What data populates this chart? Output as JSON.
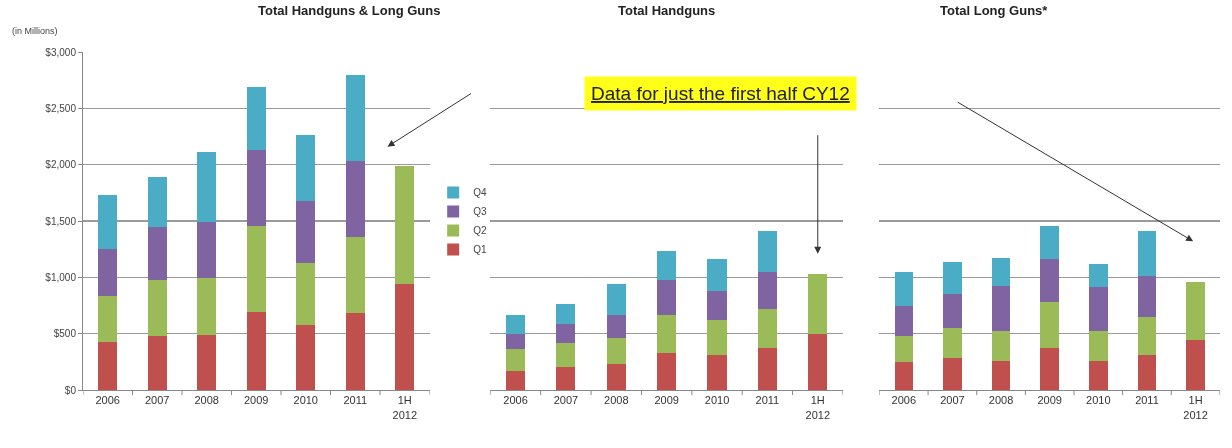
{
  "chart_data": [
    {
      "type": "bar",
      "title": "Total Handguns & Long Guns",
      "ylabel": "(in Millions)",
      "stacked": true,
      "grid": "y",
      "legend": "right",
      "categories": [
        "2006",
        "2007",
        "2008",
        "2009",
        "2010",
        "2011",
        "1H\n2012"
      ],
      "ylim": [
        0,
        3000
      ],
      "yticks": [
        {
          "value": 0,
          "label": "$0"
        },
        {
          "value": 500,
          "label": "$500"
        },
        {
          "value": 1000,
          "label": "$1,000"
        },
        {
          "value": 1500,
          "label": "$1,500"
        },
        {
          "value": 2000,
          "label": "$2,000"
        },
        {
          "value": 2500,
          "label": "$2,500"
        },
        {
          "value": 3000,
          "label": "$3,000"
        }
      ],
      "series": [
        {
          "name": "Q1",
          "color": "#c0504d",
          "values": [
            430,
            480,
            490,
            690,
            580,
            680,
            940
          ]
        },
        {
          "name": "Q2",
          "color": "#9bbb59",
          "values": [
            400,
            500,
            500,
            770,
            550,
            680,
            1050
          ]
        },
        {
          "name": "Q3",
          "color": "#8064a2",
          "values": [
            420,
            470,
            500,
            670,
            550,
            670,
            null
          ]
        },
        {
          "name": "Q4",
          "color": "#4bacc6",
          "values": [
            480,
            440,
            620,
            560,
            580,
            770,
            null
          ]
        }
      ]
    },
    {
      "type": "bar",
      "title": "Total Handguns",
      "stacked": true,
      "grid": "y",
      "tick_labels": "x",
      "categories": [
        "2006",
        "2007",
        "2008",
        "2009",
        "2010",
        "2011",
        "1H\n2012"
      ],
      "ylim": [
        0,
        3000
      ],
      "yticks": [
        0,
        500,
        1000,
        1500,
        2000,
        2500,
        3000
      ],
      "annotations": [
        "Data for just the first half CY12"
      ],
      "series": [
        {
          "color": "#c0504d",
          "values": [
            170,
            200,
            230,
            330,
            310,
            370,
            500
          ]
        },
        {
          "color": "#9bbb59",
          "values": [
            190,
            220,
            230,
            340,
            310,
            350,
            530
          ]
        },
        {
          "color": "#8064a2",
          "values": [
            140,
            170,
            210,
            310,
            260,
            330,
            null
          ]
        },
        {
          "color": "#4bacc6",
          "values": [
            170,
            170,
            270,
            250,
            280,
            360,
            null
          ]
        }
      ]
    },
    {
      "type": "bar",
      "title": "Total Long Guns*",
      "stacked": true,
      "grid": "y",
      "tick_labels": "x",
      "categories": [
        "2006",
        "2007",
        "2008",
        "2009",
        "2010",
        "2011",
        "1H\n2012"
      ],
      "ylim": [
        0,
        3000
      ],
      "yticks": [
        0,
        500,
        1000,
        1500,
        2000,
        2500,
        3000
      ],
      "series": [
        {
          "color": "#c0504d",
          "values": [
            250,
            280,
            260,
            370,
            260,
            310,
            440
          ]
        },
        {
          "color": "#9bbb59",
          "values": [
            230,
            270,
            260,
            410,
            260,
            340,
            520
          ]
        },
        {
          "color": "#8064a2",
          "values": [
            270,
            300,
            400,
            380,
            390,
            360,
            null
          ]
        },
        {
          "color": "#4bacc6",
          "values": [
            300,
            290,
            250,
            300,
            210,
            400,
            null
          ]
        }
      ]
    }
  ]
}
